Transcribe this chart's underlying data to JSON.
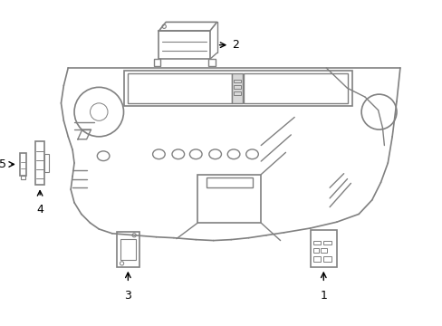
{
  "background_color": "#ffffff",
  "line_color": "#808080",
  "line_width": 1.0,
  "figsize": [
    4.89,
    3.6
  ],
  "dpi": 100
}
